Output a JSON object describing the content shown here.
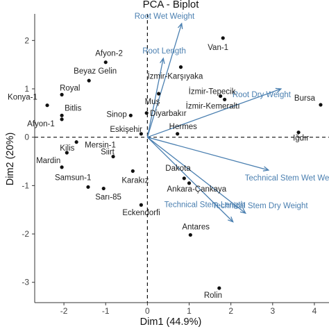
{
  "chart_data": {
    "type": "scatter",
    "title": "PCA - Biplot",
    "xlabel": "Dim1 (44.9%)",
    "ylabel": "Dim2 (20%)",
    "xlim": [
      -2.7,
      4.35
    ],
    "ylim": [
      -3.42,
      2.55
    ],
    "xticks": [
      -2,
      -1,
      0,
      1,
      2,
      3,
      4
    ],
    "yticks": [
      -3,
      -2,
      -1,
      0,
      1,
      2
    ],
    "reference_lines": {
      "x": 0,
      "y": 0,
      "style": "dashed"
    },
    "colors": {
      "points": "#111111",
      "vectors": "#4a7fb0",
      "labels": "#222222"
    },
    "points": [
      {
        "label": "Van-1",
        "x": 1.81,
        "y": 2.05
      },
      {
        "label": "Afyon-2",
        "x": -1.0,
        "y": 1.55
      },
      {
        "label": "İzmir-Karşıyaka",
        "x": 0.8,
        "y": 1.45
      },
      {
        "label": "Beyaz Gelin",
        "x": -1.4,
        "y": 1.17
      },
      {
        "label": "Royal",
        "x": -2.05,
        "y": 0.88
      },
      {
        "label": "Konya-1",
        "x": -2.4,
        "y": 0.66
      },
      {
        "label": "Bitlis",
        "x": -2.05,
        "y": 0.45
      },
      {
        "label": "Afyon-1",
        "x": -2.05,
        "y": 0.37
      },
      {
        "label": "İzmir-Tepecik",
        "x": 1.75,
        "y": 0.85
      },
      {
        "label": "İzmir-Kemeraltı",
        "x": 1.85,
        "y": 0.78
      },
      {
        "label": "Bursa",
        "x": 4.15,
        "y": 0.67
      },
      {
        "label": "Muş",
        "x": 0.27,
        "y": 0.9
      },
      {
        "label": "Diyarbakır",
        "x": -0.02,
        "y": 0.5
      },
      {
        "label": "Sinop",
        "x": -0.4,
        "y": 0.45
      },
      {
        "label": "Eskişehir",
        "x": -0.15,
        "y": 0.07
      },
      {
        "label": "Hermes",
        "x": 0.72,
        "y": 0.07
      },
      {
        "label": "Iğdır",
        "x": 3.62,
        "y": 0.1
      },
      {
        "label": "Mersin-1",
        "x": -1.7,
        "y": -0.1
      },
      {
        "label": "Kilis",
        "x": -1.93,
        "y": -0.32
      },
      {
        "label": "Siirt",
        "x": -0.82,
        "y": -0.4
      },
      {
        "label": "Mardin",
        "x": -2.05,
        "y": -0.62
      },
      {
        "label": "Karakız",
        "x": -0.35,
        "y": -0.7
      },
      {
        "label": "Dakota",
        "x": 0.88,
        "y": -0.85
      },
      {
        "label": "Ankara-Çankaya",
        "x": 1.0,
        "y": -0.95
      },
      {
        "label": "Samsun-1",
        "x": -1.42,
        "y": -1.03
      },
      {
        "label": "Sarı-85",
        "x": -1.05,
        "y": -1.06
      },
      {
        "label": "Eckendorfi",
        "x": -0.15,
        "y": -1.4
      },
      {
        "label": "Antares",
        "x": 1.03,
        "y": -2.02
      },
      {
        "label": "Rolin",
        "x": 1.72,
        "y": -3.12
      }
    ],
    "vectors": [
      {
        "label": "Root Wet Weight",
        "x": 0.82,
        "y": 2.35
      },
      {
        "label": "Root Length",
        "x": 0.38,
        "y": 1.63
      },
      {
        "label": "Root Dry Weight",
        "x": 3.2,
        "y": 1.0
      },
      {
        "label": "Technical Stem Wet Weight",
        "x": 2.9,
        "y": -0.68
      },
      {
        "label": "Technical Stem Dry Weight",
        "x": 2.35,
        "y": -1.57
      },
      {
        "label": "Technical Stem Length",
        "x": 2.05,
        "y": -1.75
      }
    ]
  }
}
